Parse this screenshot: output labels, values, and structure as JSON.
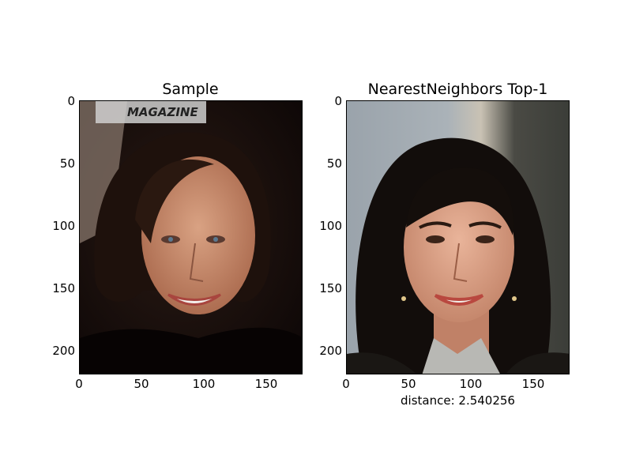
{
  "panels": [
    {
      "title": "Sample",
      "x_ticks": [
        "0",
        "50",
        "100",
        "150"
      ],
      "y_ticks": [
        "0",
        "50",
        "100",
        "150",
        "200"
      ],
      "watermark": "MAGAZINE",
      "subject": "smiling woman with dark hair on dark background"
    },
    {
      "title": "NearestNeighbors Top-1",
      "x_ticks": [
        "0",
        "50",
        "100",
        "150"
      ],
      "y_ticks": [
        "0",
        "50",
        "100",
        "150",
        "200"
      ],
      "caption": "distance: 2.540256",
      "subject": "smiling woman with long black hair against light backdrop"
    }
  ]
}
